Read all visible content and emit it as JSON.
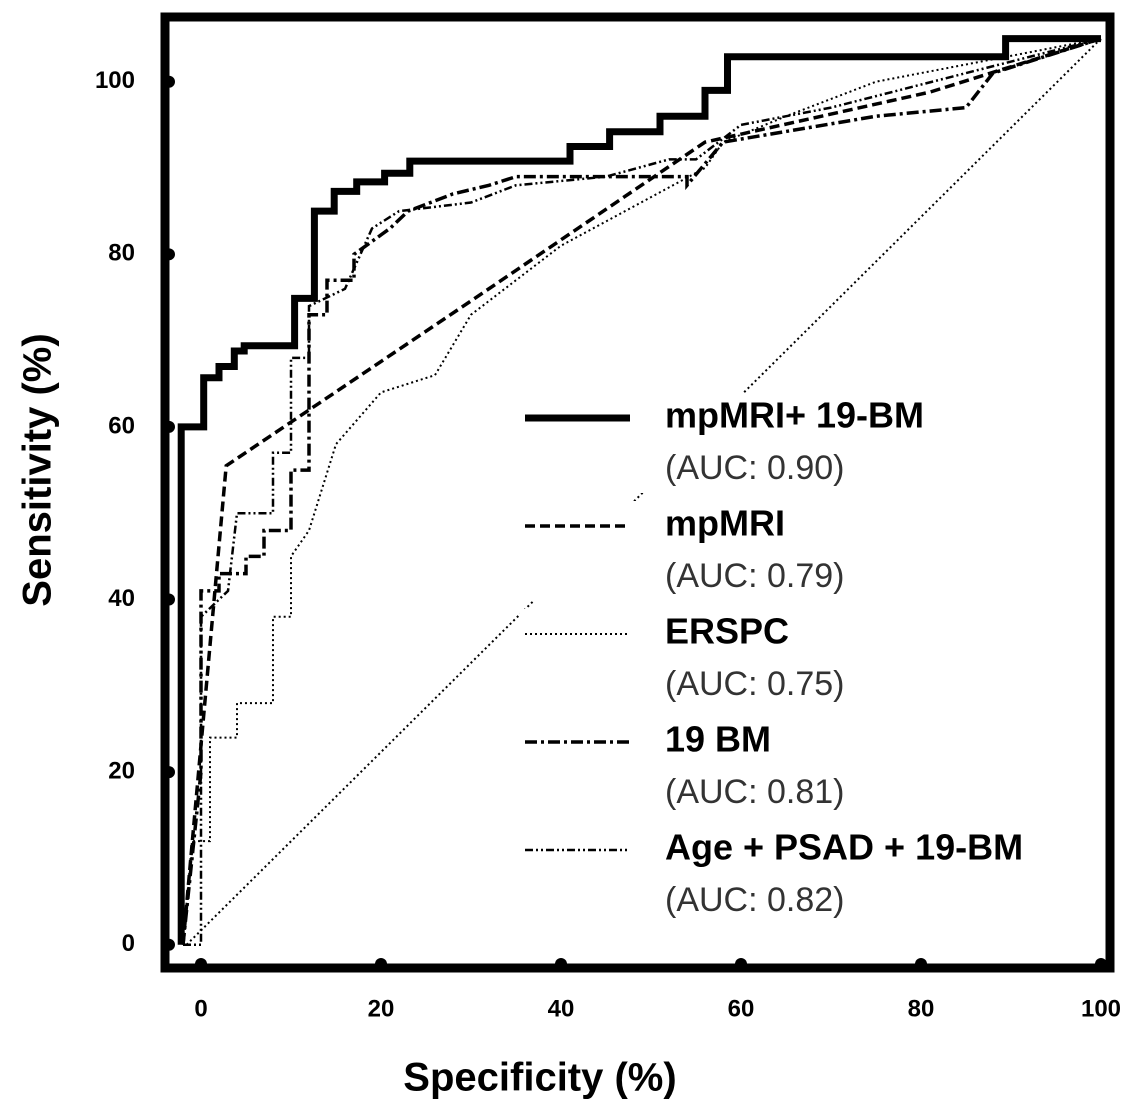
{
  "chart_data": {
    "type": "line",
    "xlabel": "Specificity (%)",
    "ylabel": "Sensitivity (%)",
    "xlim": [
      -4,
      101
    ],
    "ylim": [
      -2.7,
      107.5
    ],
    "xticks": [
      0,
      20,
      40,
      60,
      80,
      100
    ],
    "yticks": [
      0,
      20,
      40,
      60,
      80,
      100
    ],
    "legend": "right",
    "series": [
      {
        "name": "mpMRI+ 19-BM",
        "auc_label": "(AUC: 0.90)",
        "color": "#000000",
        "dash": "solid",
        "line_width": 7,
        "x": [
          -2.2,
          -2.2,
          0.3,
          0.3,
          2,
          2,
          3.7,
          3.7,
          4.8,
          4.8,
          10.4,
          10.4,
          12.6,
          12.6,
          14.8,
          14.8,
          17.3,
          17.3,
          20.4,
          20.4,
          23.2,
          23.2,
          41,
          41,
          45.4,
          45.4,
          51,
          51,
          56,
          56,
          58.5,
          58.5,
          89.4,
          89.4,
          100
        ],
        "values": [
          0,
          60,
          60,
          65.7,
          65.7,
          67,
          67,
          68.8,
          68.8,
          69.4,
          69.4,
          74.9,
          74.9,
          85,
          85,
          87.3,
          87.3,
          88.4,
          88.4,
          89.4,
          89.4,
          90.8,
          90.8,
          92.5,
          92.5,
          94.2,
          94.2,
          96,
          96,
          99,
          99,
          102.9,
          102.9,
          105,
          105
        ]
      },
      {
        "name": "mpMRI",
        "auc_label": "(AUC: 0.79)",
        "color": "#000000",
        "dash": "dashed",
        "line_width": 3.5,
        "x": [
          -2,
          2.8,
          30,
          56,
          81,
          100
        ],
        "values": [
          0,
          55.5,
          74.6,
          93,
          98.8,
          105
        ]
      },
      {
        "name": "ERSPC",
        "auc_label": "(AUC: 0.75)",
        "color": "#000000",
        "dash": "dotted",
        "line_width": 2,
        "x": [
          -2,
          -1,
          1,
          1,
          4,
          4,
          8,
          8,
          10,
          10,
          12,
          15,
          20,
          26,
          30,
          40,
          56,
          58,
          65,
          75,
          100
        ],
        "values": [
          0,
          12,
          12,
          24,
          24,
          28,
          28,
          38,
          38,
          45,
          48,
          58,
          64,
          66,
          73,
          81,
          90,
          93,
          96,
          100,
          105
        ]
      },
      {
        "name": "19 BM",
        "auc_label": "(AUC: 0.81)",
        "color": "#000000",
        "dash": "dashdot",
        "line_width": 3.5,
        "x": [
          -2,
          0,
          0,
          2,
          2,
          5,
          5,
          7,
          7,
          10,
          10,
          12,
          12,
          14,
          14,
          17,
          17,
          21,
          23,
          28,
          32,
          35,
          54,
          54,
          58,
          75,
          85,
          88,
          100
        ],
        "values": [
          0,
          20,
          41,
          41,
          43,
          43,
          45,
          45,
          48,
          48,
          55,
          55,
          73,
          73,
          77,
          77,
          80,
          83,
          85,
          87,
          88,
          89,
          89,
          88,
          93,
          96,
          97,
          101,
          105
        ]
      },
      {
        "name": "Age + PSAD + 19-BM",
        "auc_label": "(AUC: 0.82)",
        "color": "#000000",
        "dash": "dashdotdot",
        "line_width": 2.5,
        "x": [
          -2,
          0,
          0,
          3,
          4,
          8,
          8,
          10,
          10,
          12,
          12,
          16,
          19,
          22,
          30,
          35,
          45,
          52,
          55,
          60,
          70,
          85,
          100
        ],
        "values": [
          0,
          0,
          38,
          41,
          50,
          50,
          57,
          57,
          68,
          68,
          74,
          76,
          83,
          85,
          86,
          88,
          89,
          91,
          91,
          95,
          97,
          101,
          105
        ]
      }
    ],
    "reference": {
      "color": "#000000",
      "dash": "dotted",
      "x": [
        -1.6,
        100
      ],
      "values": [
        0,
        105
      ]
    }
  }
}
